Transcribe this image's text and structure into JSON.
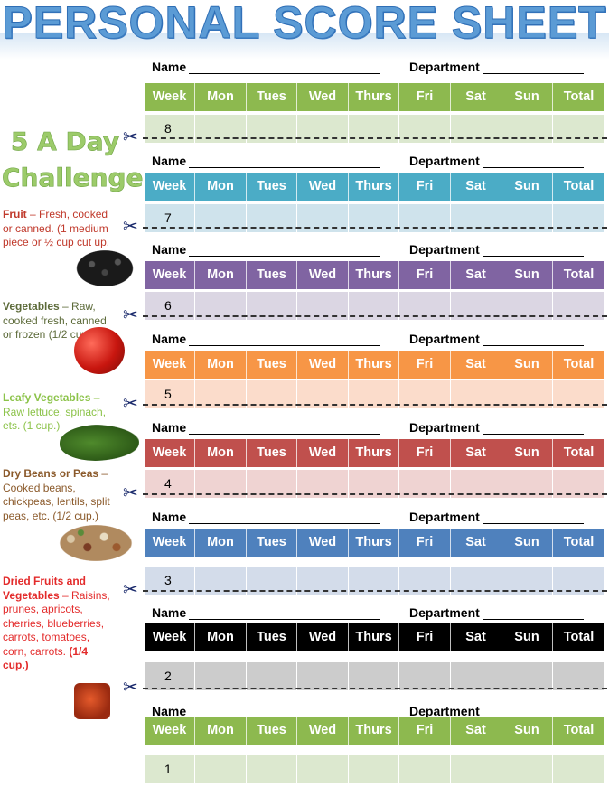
{
  "title": "PERSONAL SCORE SHEET",
  "challenge": {
    "line1": "5 A Day",
    "line2": "Challenge"
  },
  "sidebar": [
    {
      "key": "fruit",
      "heading": "Fruit",
      "text": " – Fresh, cooked or canned. (1 medium piece or ½ cup cut up."
    },
    {
      "key": "veg",
      "heading": "Vegetables",
      "text": " – Raw, cooked fresh, canned or frozen (1/2 cup.)"
    },
    {
      "key": "leafy",
      "heading": "Leafy Vegetables",
      "text": " – Raw lettuce, spinach, ets. (1 cup.)"
    },
    {
      "key": "beans",
      "heading": "Dry Beans or Peas",
      "text": " – Cooked beans, chickpeas, lentils, split peas, etc. (1/2 cup.)"
    },
    {
      "key": "dried",
      "heading": "Dried Fruits and Vegetables",
      "text": " – Raisins, prunes, apricots, cherries, blueberries, carrots, tomatoes, corn, carrots. ",
      "last": "(1/4 cup.)"
    }
  ],
  "labels": {
    "name": "Name",
    "department": "Department"
  },
  "columns": [
    "Week",
    "Mon",
    "Tues",
    "Wed",
    "Thurs",
    "Fri",
    "Sat",
    "Sun",
    "Total"
  ],
  "sheets": [
    {
      "week": "8",
      "header_color": "#8db94f",
      "row_color": "#dce8cf"
    },
    {
      "week": "7",
      "header_color": "#4bacc6",
      "row_color": "#cfe3ec"
    },
    {
      "week": "6",
      "header_color": "#8064a2",
      "row_color": "#dbd6e3"
    },
    {
      "week": "5",
      "header_color": "#f79646",
      "row_color": "#fbdccb"
    },
    {
      "week": "4",
      "header_color": "#c0504d",
      "row_color": "#efd3d2"
    },
    {
      "week": "3",
      "header_color": "#4f81bd",
      "row_color": "#d3dcea"
    },
    {
      "week": "2",
      "header_color": "#000000",
      "row_color": "#cccccc"
    },
    {
      "week": "1",
      "header_color": "#8db94f",
      "row_color": "#dce8cf"
    }
  ],
  "icons": {
    "cut": "scissors-icon"
  }
}
